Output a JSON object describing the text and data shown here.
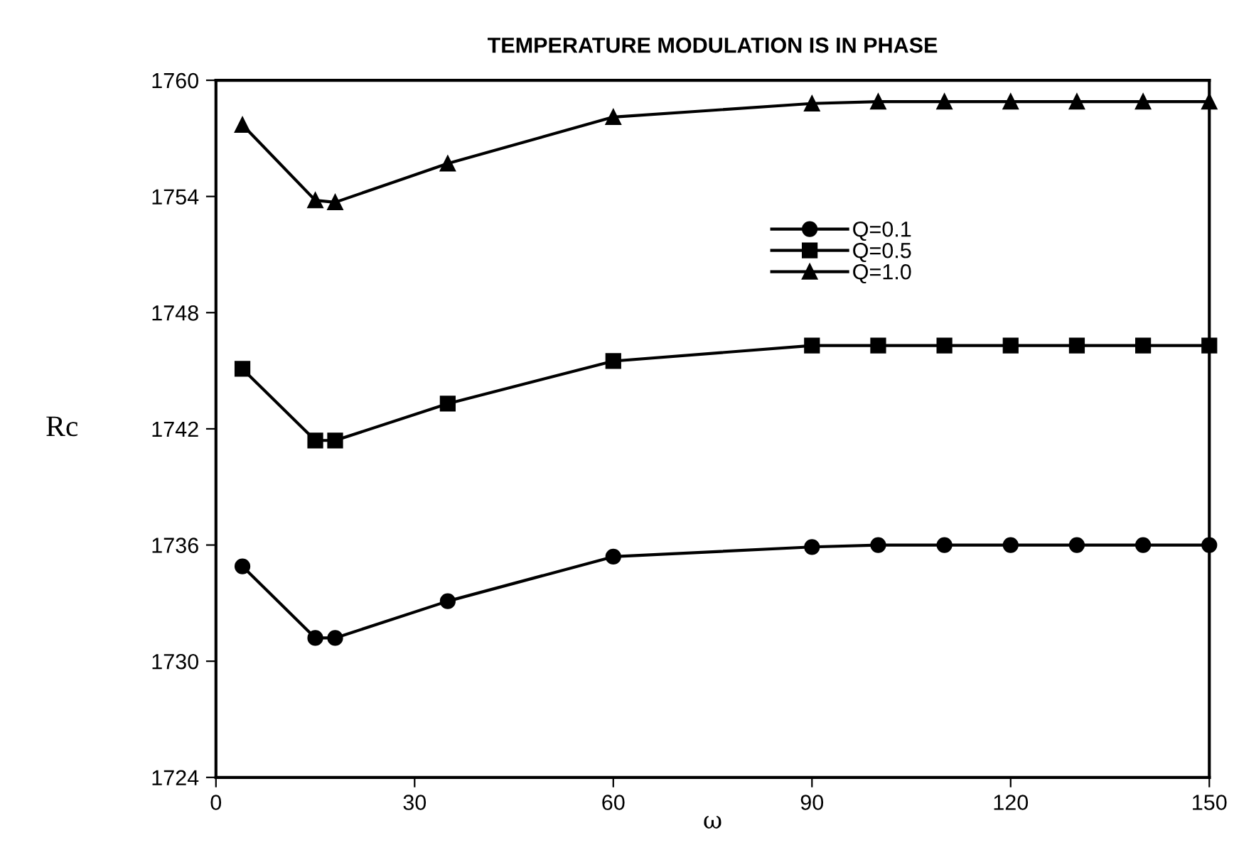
{
  "chart_data": {
    "type": "line",
    "title": "TEMPERATURE MODULATION IS IN PHASE",
    "xlabel": "ω",
    "ylabel": "Rc",
    "x": [
      4,
      15,
      18,
      35,
      60,
      90,
      100,
      110,
      120,
      130,
      140,
      150
    ],
    "series": [
      {
        "name": "Q=0.1",
        "color": "#000000",
        "marker": "circle",
        "values": [
          1734.9,
          1731.2,
          1731.2,
          1733.1,
          1735.4,
          1735.9,
          1736.0,
          1736.0,
          1736.0,
          1736.0,
          1736.0,
          1736.0
        ]
      },
      {
        "name": "Q=0.5",
        "color": "#000000",
        "marker": "square",
        "values": [
          1745.1,
          1741.4,
          1741.4,
          1743.3,
          1745.5,
          1746.3,
          1746.3,
          1746.3,
          1746.3,
          1746.3,
          1746.3,
          1746.3
        ]
      },
      {
        "name": "Q=1.0",
        "color": "#000000",
        "marker": "triangle",
        "values": [
          1757.7,
          1753.8,
          1753.7,
          1755.7,
          1758.1,
          1758.8,
          1758.9,
          1758.9,
          1758.9,
          1758.9,
          1758.9,
          1758.9
        ]
      }
    ],
    "xlim": [
      0,
      150
    ],
    "xticks": [
      0,
      30,
      60,
      90,
      120,
      150
    ],
    "ylim": [
      1724,
      1760
    ],
    "yticks": [
      1724,
      1730,
      1736,
      1742,
      1748,
      1754,
      1760
    ],
    "grid": false,
    "legend": "top",
    "line_style": "solid"
  }
}
